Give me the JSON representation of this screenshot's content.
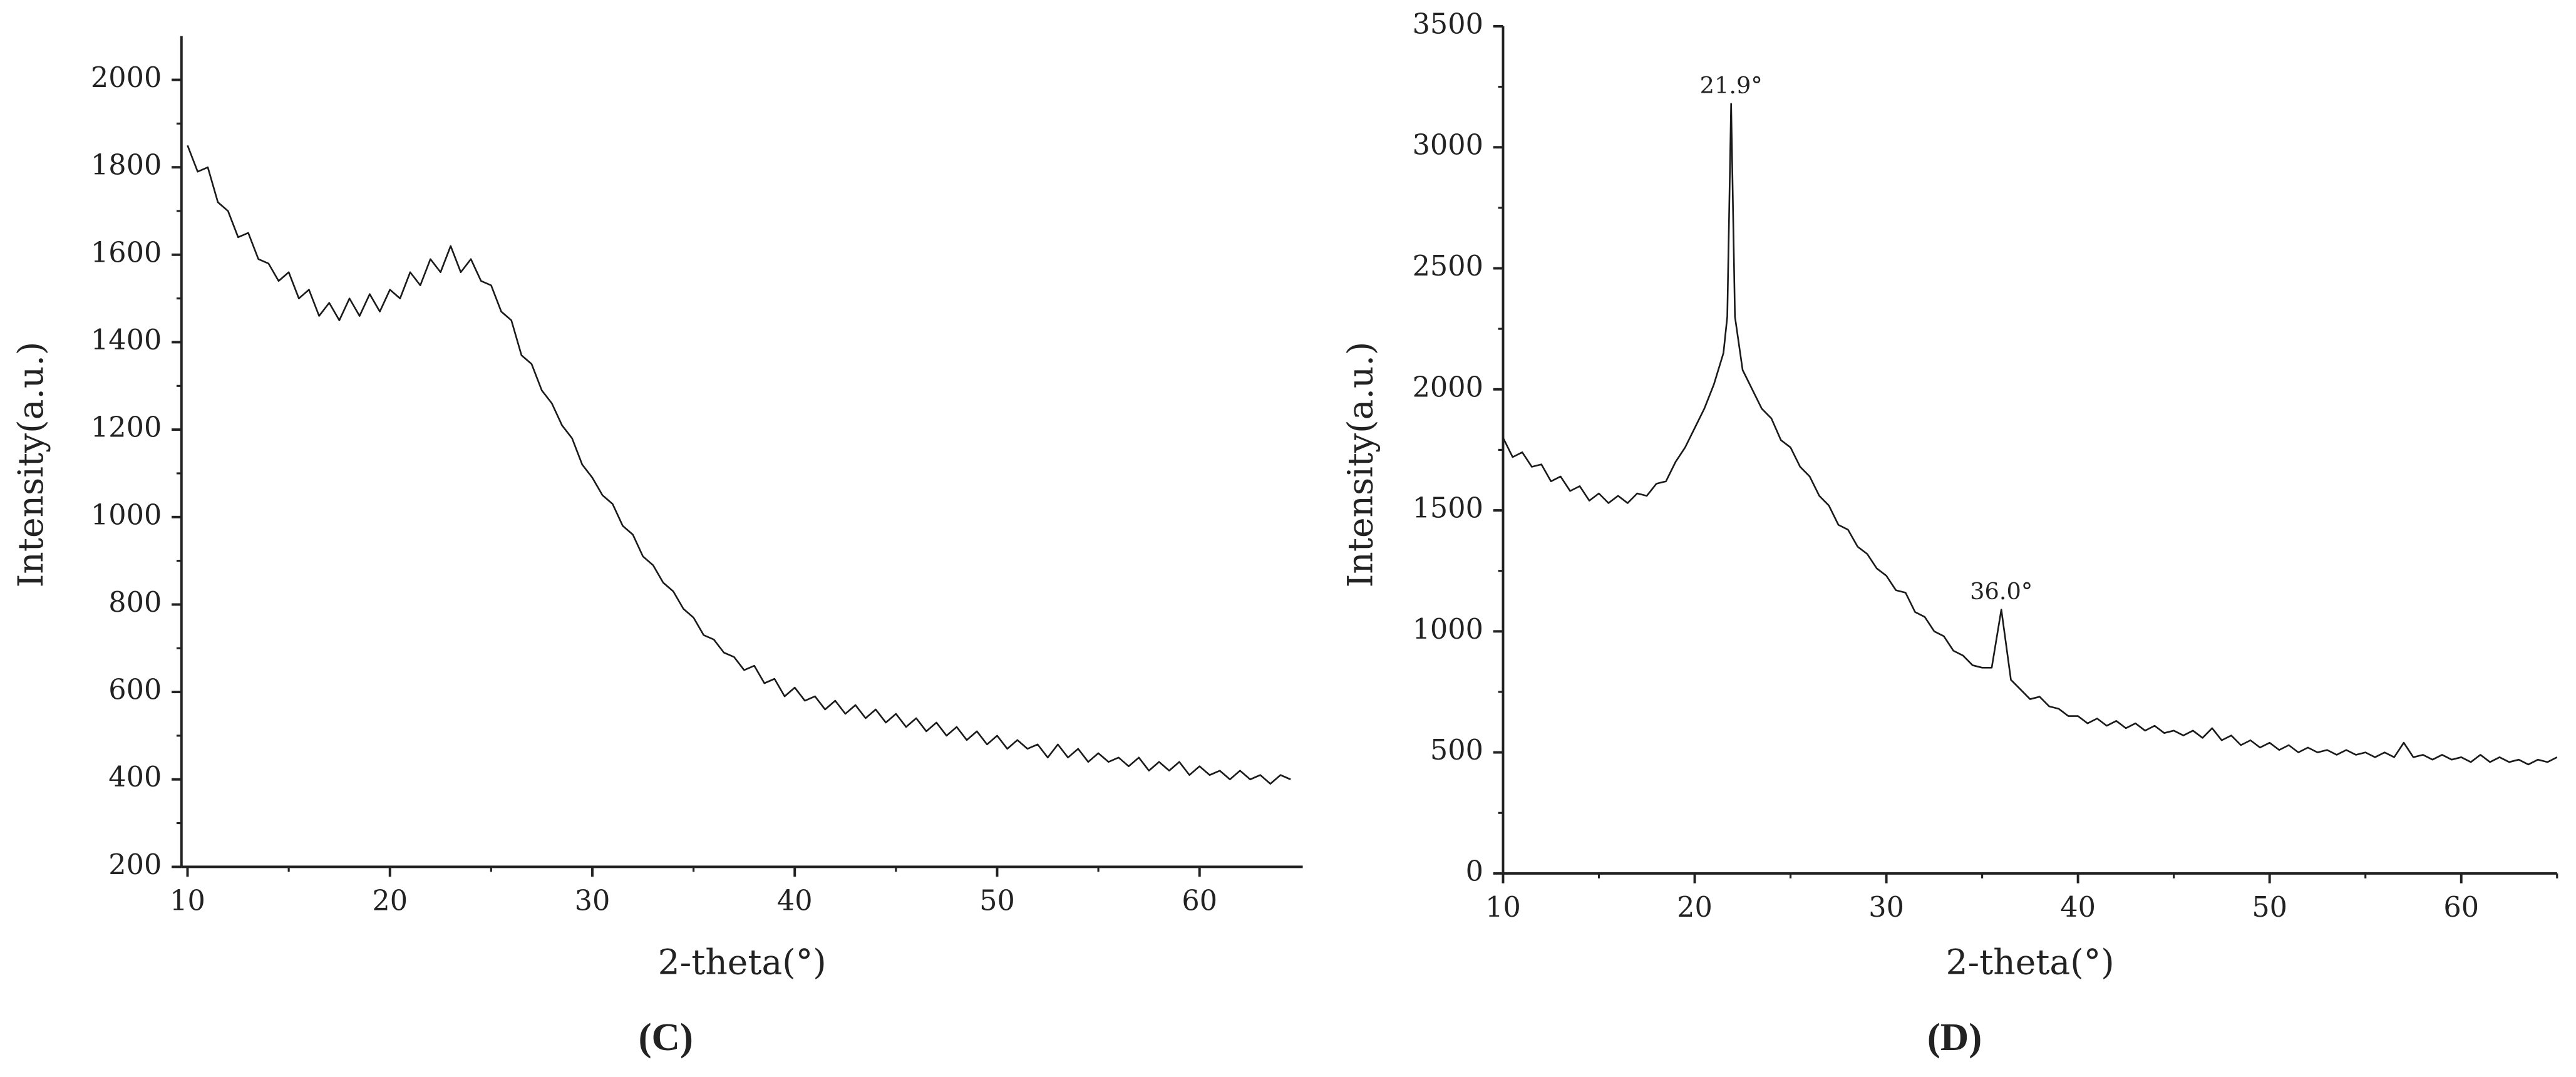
{
  "chart_data": [
    {
      "type": "line",
      "caption": "(C)",
      "x_label": "2-theta(°)",
      "y_label": "Intensity(a.u.)",
      "xlim": [
        9.7,
        65.1
      ],
      "ylim": [
        200,
        2100
      ],
      "xticks": [
        10,
        20,
        30,
        40,
        50,
        60
      ],
      "yticks": [
        200,
        400,
        600,
        800,
        1000,
        1200,
        1400,
        1600,
        1800,
        2000
      ],
      "xminor": [
        15,
        25,
        35,
        45,
        55
      ],
      "yminor": [
        300,
        500,
        700,
        900,
        1100,
        1300,
        1500,
        1700,
        1900
      ],
      "color": "#1a1a1a",
      "x": [
        10,
        10.5,
        11,
        11.5,
        12,
        12.5,
        13,
        13.5,
        14,
        14.5,
        15,
        15.5,
        16,
        16.5,
        17,
        17.5,
        18,
        18.5,
        19,
        19.5,
        20,
        20.5,
        21,
        21.5,
        22,
        22.5,
        23,
        23.5,
        24,
        24.5,
        25,
        25.5,
        26,
        26.5,
        27,
        27.5,
        28,
        28.5,
        29,
        29.5,
        30,
        30.5,
        31,
        31.5,
        32,
        32.5,
        33,
        33.5,
        34,
        34.5,
        35,
        35.5,
        36,
        36.5,
        37,
        37.5,
        38,
        38.5,
        39,
        39.5,
        40,
        40.5,
        41,
        41.5,
        42,
        42.5,
        43,
        43.5,
        44,
        44.5,
        45,
        45.5,
        46,
        46.5,
        47,
        47.5,
        48,
        48.5,
        49,
        49.5,
        50,
        50.5,
        51,
        51.5,
        52,
        52.5,
        53,
        53.5,
        54,
        54.5,
        55,
        55.5,
        56,
        56.5,
        57,
        57.5,
        58,
        58.5,
        59,
        59.5,
        60,
        60.5,
        61,
        61.5,
        62,
        62.5,
        63,
        63.5,
        64,
        64.5
      ],
      "values": [
        1850,
        1790,
        1800,
        1720,
        1700,
        1640,
        1650,
        1590,
        1580,
        1540,
        1560,
        1500,
        1520,
        1460,
        1490,
        1450,
        1500,
        1460,
        1510,
        1470,
        1520,
        1500,
        1560,
        1530,
        1590,
        1560,
        1620,
        1560,
        1590,
        1540,
        1530,
        1470,
        1450,
        1370,
        1350,
        1290,
        1260,
        1210,
        1180,
        1120,
        1090,
        1050,
        1030,
        980,
        960,
        910,
        890,
        850,
        830,
        790,
        770,
        730,
        720,
        690,
        680,
        650,
        660,
        620,
        630,
        590,
        610,
        580,
        590,
        560,
        580,
        550,
        570,
        540,
        560,
        530,
        550,
        520,
        540,
        510,
        530,
        500,
        520,
        490,
        510,
        480,
        500,
        470,
        490,
        470,
        480,
        450,
        480,
        450,
        470,
        440,
        460,
        440,
        450,
        430,
        450,
        420,
        440,
        420,
        440,
        410,
        430,
        410,
        420,
        400,
        420,
        400,
        410,
        390,
        410,
        400
      ]
    },
    {
      "type": "line",
      "caption": "(D)",
      "x_label": "2-theta(°)",
      "y_label": "Intensity(a.u.)",
      "xlim": [
        10,
        65
      ],
      "ylim": [
        0,
        3500
      ],
      "xticks": [
        10,
        20,
        30,
        40,
        50,
        60
      ],
      "yticks": [
        0,
        500,
        1000,
        1500,
        2000,
        2500,
        3000,
        3500
      ],
      "xminor": [
        15,
        25,
        35,
        45,
        55,
        65
      ],
      "yminor": [
        250,
        750,
        1250,
        1750,
        2250,
        2750,
        3250
      ],
      "color": "#1a1a1a",
      "annotations": [
        {
          "text": "21.9°",
          "x": 21.9
        },
        {
          "text": "36.0°",
          "x": 36
        }
      ],
      "x": [
        10,
        10.5,
        11,
        11.5,
        12,
        12.5,
        13,
        13.5,
        14,
        14.5,
        15,
        15.5,
        16,
        16.5,
        17,
        17.5,
        18,
        18.5,
        19,
        19.5,
        20,
        20.5,
        21,
        21.5,
        21.7,
        21.9,
        22.1,
        22.5,
        23,
        23.5,
        24,
        24.5,
        25,
        25.5,
        26,
        26.5,
        27,
        27.5,
        28,
        28.5,
        29,
        29.5,
        30,
        30.5,
        31,
        31.5,
        32,
        32.5,
        33,
        33.5,
        34,
        34.5,
        35,
        35.5,
        36,
        36.5,
        37,
        37.5,
        38,
        38.5,
        39,
        39.5,
        40,
        40.5,
        41,
        41.5,
        42,
        42.5,
        43,
        43.5,
        44,
        44.5,
        45,
        45.5,
        46,
        46.5,
        47,
        47.5,
        48,
        48.5,
        49,
        49.5,
        50,
        50.5,
        51,
        51.5,
        52,
        52.5,
        53,
        53.5,
        54,
        54.5,
        55,
        55.5,
        56,
        56.5,
        57,
        57.5,
        58,
        58.5,
        59,
        59.5,
        60,
        60.5,
        61,
        61.5,
        62,
        62.5,
        63,
        63.5,
        64,
        64.5,
        65
      ],
      "values": [
        1800,
        1720,
        1740,
        1680,
        1690,
        1620,
        1640,
        1580,
        1600,
        1540,
        1570,
        1530,
        1560,
        1530,
        1570,
        1560,
        1610,
        1620,
        1700,
        1760,
        1840,
        1920,
        2020,
        2150,
        2300,
        3180,
        2300,
        2080,
        2000,
        1920,
        1880,
        1790,
        1760,
        1680,
        1640,
        1560,
        1520,
        1440,
        1420,
        1350,
        1320,
        1260,
        1230,
        1170,
        1160,
        1080,
        1060,
        1000,
        980,
        920,
        900,
        860,
        850,
        850,
        1090,
        800,
        760,
        720,
        730,
        690,
        680,
        650,
        650,
        620,
        640,
        610,
        630,
        600,
        620,
        590,
        610,
        580,
        590,
        570,
        590,
        560,
        600,
        550,
        570,
        530,
        550,
        520,
        540,
        510,
        530,
        500,
        520,
        500,
        510,
        490,
        510,
        490,
        500,
        480,
        500,
        480,
        540,
        480,
        490,
        470,
        490,
        470,
        480,
        460,
        490,
        460,
        480,
        460,
        470,
        450,
        470,
        460,
        480
      ]
    }
  ]
}
